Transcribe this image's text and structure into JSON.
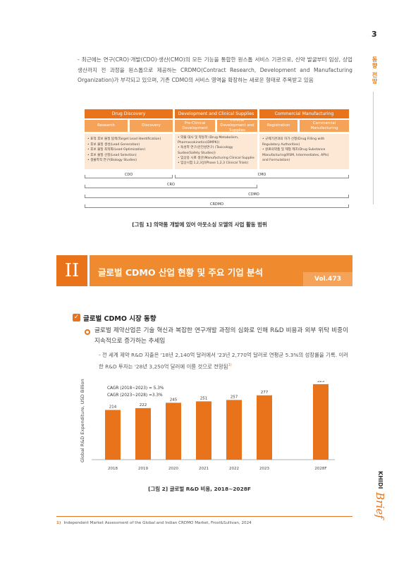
{
  "page_number": "3",
  "side_tab": "동향 전망",
  "intro": "- 최근에는 연구(CRO)·개발(CDO)·생산(CMO)의 모든 기능을 통합한 원스톱 서비스 기관으로, 신약 발굴부터 임상, 상업 생산까지 전 과정을 원스톱으로 제공하는 CRDMO(Contract Research, Development and Manufacturing Organization)가 부각되고 있으며, 기존 CDMO의 서비스 영역을 확장하는 새로운 형태로 주목받고 있음",
  "figure1": {
    "headers": [
      "Drug Discovery",
      "Development and Clinical Supplies",
      "Commercial Manufacturing"
    ],
    "subheaders": [
      "Research",
      "Discovery",
      "Pre-Clinical Development",
      "Clinical Development and Supplies",
      "Registration",
      "Commercial Manufacturing"
    ],
    "col1": [
      "• 표적 후보 물질 탐색(Target Lead Identification)",
      "• 후보 물질 생성(Lead Generation)",
      "• 후보 물질 최적화(Lead Optimization)",
      "• 후보 물질 선정(Lead Selection)",
      "• 생물학적 연구(Biology Studies)"
    ],
    "col2": [
      "• 약물 대사 및 약동학 (Drug Metabolism,",
      "  Pharmacokinetics(DMPK))",
      "• 독성학 연구(안전성연구) (Toxicology",
      "  Sudies(Safety Studies))",
      "• 임상용 시료 생산(Manufacturing Clinical Supplies)",
      "• 임상시험 1,2,3상(Phase 1,2,3 Clinical Trials)"
    ],
    "col3": [
      "• 규제기관과의 허가 신청(Drug Filling with",
      "  Regulatory Authorities)",
      "• 원료의약품 및 제형 제조(Drug Substance",
      "  Manufacturing(RSM, Intermediates, APIs)",
      "  and Formulation)"
    ],
    "ranges": [
      "CDO",
      "CMO",
      "CRO",
      "CDMO",
      "CRDMO"
    ],
    "caption": "[그림 1] 의약품 개발에 있어 아웃소싱 모델의 사업 활동 범위"
  },
  "section": {
    "number": "II",
    "title": "글로벌 CDMO 산업 현황 및 주요 기업 분석",
    "vol": "Vol.473",
    "sub_heading": "글로벌 CDMO 시장 동향",
    "bullet": "글로벌 제약산업은 기술 혁신과 복잡한 연구개발 과정의 심화로 인해 R&D 비용과 외부 위탁 비중이 지속적으로 증가하는 추세임",
    "dash": "- 전 세계 제약 R&D 지출은 '18년 2,140억 달러에서 '23년 2,770억 달러로 연평균 5.3%의 성장률을 기록. 이러한 R&D 투자는 '28년 3,250억 달러에 이를 것으로 전망됨",
    "dash_sup": "1)"
  },
  "chart_data": {
    "type": "bar",
    "categories": [
      "2018",
      "2019",
      "2020",
      "2021",
      "2022",
      "2023",
      "2028F"
    ],
    "values": [
      214,
      222,
      245,
      251,
      257,
      277,
      325
    ],
    "ylabel": "Global R&D Expenditure, USD Billion",
    "annotations": [
      "CAGR (2018~2023) = 5.3%",
      "CAGR (2023~2028) =3.3%"
    ],
    "ylim": [
      0,
      340
    ],
    "bar_color": "#e9731b",
    "caption": "[그림 2] 글로벌 R&D 비용, 2018~2028F"
  },
  "footnote": {
    "marker": "1)",
    "text": "Independent Market Assessment of the Global and Indian CRDMO Market, Frost&Sullivan, 2024"
  },
  "brand": {
    "k": "KHIDI",
    "name": "Brief"
  }
}
